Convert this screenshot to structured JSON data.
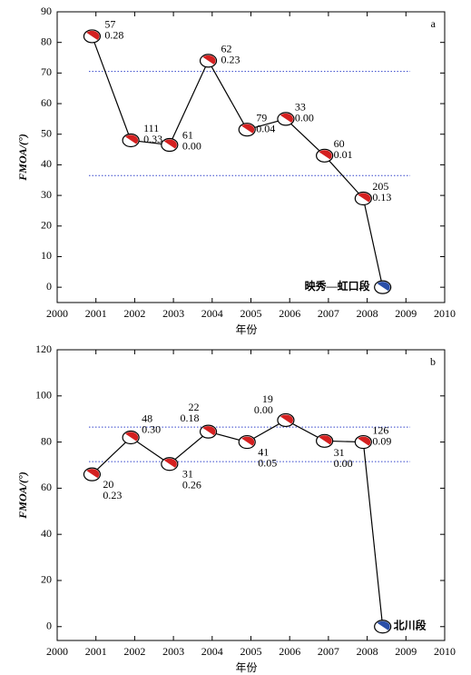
{
  "chart_data": [
    {
      "type": "line",
      "panel_label": "a",
      "xlabel": "年份",
      "ylabel": "FMOA/(°)",
      "x": [
        2000.9,
        2001.9,
        2002.9,
        2003.9,
        2004.9,
        2005.9,
        2006.9,
        2007.9,
        2008.4
      ],
      "values": [
        82,
        48,
        46.5,
        74,
        51.5,
        55,
        43,
        29,
        0
      ],
      "point_labels": [
        [
          "57",
          "0.28"
        ],
        [
          "111",
          "0.33"
        ],
        [
          "61",
          "0.00"
        ],
        [
          "62",
          "0.23"
        ],
        [
          "79",
          "0.04"
        ],
        [
          "33",
          "0.00"
        ],
        [
          "60",
          "0.01"
        ],
        [
          "205",
          "0.13"
        ],
        [
          "映秀—虹口段"
        ]
      ],
      "marker_colors": [
        "#d42020",
        "#d42020",
        "#d42020",
        "#d42020",
        "#d42020",
        "#d42020",
        "#d42020",
        "#d42020",
        "#2a4fa8"
      ],
      "reference_lines": [
        70.5,
        36.5
      ],
      "reference_color": "#3344cc",
      "xlim": [
        2000,
        2010
      ],
      "xticks": [
        2000,
        2001,
        2002,
        2003,
        2004,
        2005,
        2006,
        2007,
        2008,
        2009,
        2010
      ],
      "ylim": [
        -5,
        90
      ],
      "yticks": [
        0,
        10,
        20,
        30,
        40,
        50,
        60,
        70,
        80,
        90
      ]
    },
    {
      "type": "line",
      "panel_label": "b",
      "xlabel": "年份",
      "ylabel": "FMOA/(°)",
      "x": [
        2000.9,
        2001.9,
        2002.9,
        2003.9,
        2004.9,
        2005.9,
        2006.9,
        2007.9,
        2008.4
      ],
      "values": [
        66,
        82,
        70.5,
        84.5,
        80,
        89.5,
        80.5,
        80,
        0
      ],
      "point_labels": [
        [
          "20",
          "0.23"
        ],
        [
          "48",
          "0.30"
        ],
        [
          "31",
          "0.26"
        ],
        [
          "22",
          "0.18"
        ],
        [
          "41",
          "0.05"
        ],
        [
          "19",
          "0.00"
        ],
        [
          "31",
          "0.00"
        ],
        [
          "126",
          "0.09"
        ],
        [
          "北川段"
        ]
      ],
      "marker_colors": [
        "#d42020",
        "#d42020",
        "#d42020",
        "#d42020",
        "#d42020",
        "#d42020",
        "#d42020",
        "#d42020",
        "#2a4fa8"
      ],
      "reference_lines": [
        86.5,
        71.5
      ],
      "reference_color": "#3344cc",
      "xlim": [
        2000,
        2010
      ],
      "xticks": [
        2000,
        2001,
        2002,
        2003,
        2004,
        2005,
        2006,
        2007,
        2008,
        2009,
        2010
      ],
      "ylim": [
        -6,
        120
      ],
      "yticks": [
        0,
        20,
        40,
        60,
        80,
        100,
        120
      ]
    }
  ]
}
